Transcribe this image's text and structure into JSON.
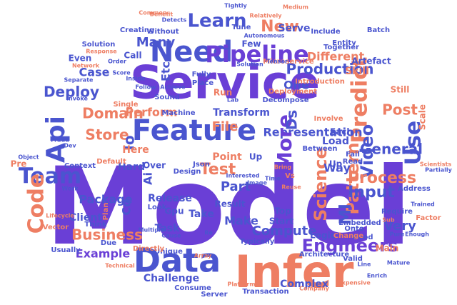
{
  "word_cloud": {
    "background": "#ffffff",
    "words": [
      {
        "text": "Model",
        "color": "#6a3fd6"
      },
      {
        "text": "Service",
        "color": "#6a3fd6"
      },
      {
        "text": "Infer",
        "color": "#ee7e63"
      },
      {
        "text": "Data",
        "color": "#4a55cf"
      },
      {
        "text": "Feature",
        "color": "#4a55cf"
      },
      {
        "text": "Need",
        "color": "#4a55cf"
      },
      {
        "text": "Pipeline",
        "color": "#6a3fd6"
      },
      {
        "text": "Predict",
        "color": "#ee7e63"
      },
      {
        "text": "Api",
        "color": "#4a55cf"
      },
      {
        "text": "Team",
        "color": "#4a55cf"
      },
      {
        "text": "Code",
        "color": "#ee7e63"
      },
      {
        "text": "Use",
        "color": "#4a55cf"
      },
      {
        "text": "Domain",
        "color": "#ee7e63"
      },
      {
        "text": "Business",
        "color": "#ee7e63"
      },
      {
        "text": "Pattern",
        "color": "#ee7e63"
      },
      {
        "text": "Engineers",
        "color": "#6a3fd6"
      },
      {
        "text": "Learn",
        "color": "#4a55cf"
      },
      {
        "text": "New",
        "color": "#ee7e63"
      },
      {
        "text": "Video",
        "color": "#4a55cf"
      },
      {
        "text": "Input",
        "color": "#4a55cf"
      },
      {
        "text": "Test",
        "color": "#ee7e63"
      },
      {
        "text": "Science",
        "color": "#ee7e63"
      },
      {
        "text": "Process",
        "color": "#ee7e63"
      },
      {
        "text": "General",
        "color": "#4a55cf"
      },
      {
        "text": "Store",
        "color": "#ee7e63"
      },
      {
        "text": "Deploy",
        "color": "#4a55cf"
      },
      {
        "text": "Production",
        "color": "#4a55cf"
      },
      {
        "text": "Representation",
        "color": "#4a55cf"
      },
      {
        "text": "Different",
        "color": "#ee7e63"
      },
      {
        "text": "Example",
        "color": "#6a3fd6"
      },
      {
        "text": "Many",
        "color": "#4a55cf"
      },
      {
        "text": "Package",
        "color": "#4a55cf"
      },
      {
        "text": "More",
        "color": "#6a3fd6"
      },
      {
        "text": "Make",
        "color": "#4a55cf"
      },
      {
        "text": "Compute",
        "color": "#4a55cf"
      },
      {
        "text": "File",
        "color": "#ee7e63"
      },
      {
        "text": "Part",
        "color": "#4a55cf"
      },
      {
        "text": "Very",
        "color": "#4a55cf"
      },
      {
        "text": "Post",
        "color": "#ee7e63"
      },
      {
        "text": "Ml",
        "color": "#4a55cf"
      },
      {
        "text": "Ds",
        "color": "#4a55cf"
      },
      {
        "text": "Io",
        "color": "#4a55cf"
      },
      {
        "text": "Cd",
        "color": "#4a55cf"
      },
      {
        "text": "Ai",
        "color": "#4a55cf"
      },
      {
        "text": "Case",
        "color": "#4a55cf"
      },
      {
        "text": "Etc",
        "color": "#4a55cf"
      },
      {
        "text": "One",
        "color": "#4a55cf"
      },
      {
        "text": "Serve",
        "color": "#4a55cf"
      },
      {
        "text": "Skill",
        "color": "#ee7e63"
      },
      {
        "text": "Scale",
        "color": "#ee7e63"
      },
      {
        "text": "Transform",
        "color": "#4a55cf"
      },
      {
        "text": "Perform",
        "color": "#ee7e63"
      },
      {
        "text": "Load",
        "color": "#4a55cf"
      },
      {
        "text": "Way",
        "color": "#4a55cf"
      },
      {
        "text": "Point",
        "color": "#ee7e63"
      },
      {
        "text": "Task",
        "color": "#4a55cf"
      },
      {
        "text": "Client",
        "color": "#4a55cf"
      },
      {
        "text": "Challenge",
        "color": "#4a55cf"
      },
      {
        "text": "Complex",
        "color": "#4a55cf"
      },
      {
        "text": "Here",
        "color": "#ee7e63"
      },
      {
        "text": "Hard",
        "color": "#4a55cf"
      },
      {
        "text": "Release",
        "color": "#4a55cf"
      },
      {
        "text": "Result",
        "color": "#4a55cf"
      },
      {
        "text": "Logic",
        "color": "#4a55cf"
      },
      {
        "text": "Each",
        "color": "#4a55cf"
      },
      {
        "text": "Call",
        "color": "#4a55cf"
      },
      {
        "text": "Even",
        "color": "#4a55cf"
      },
      {
        "text": "Few",
        "color": "#4a55cf"
      },
      {
        "text": "Run",
        "color": "#ee7e63"
      },
      {
        "text": "Gpu",
        "color": "#4a55cf"
      },
      {
        "text": "Json",
        "color": "#4a55cf"
      },
      {
        "text": "Design",
        "color": "#4a55cf"
      },
      {
        "text": "Machine",
        "color": "#4a55cf"
      },
      {
        "text": "Typically",
        "color": "#4a55cf"
      },
      {
        "text": "Plan",
        "color": "#ee7e63"
      },
      {
        "text": "Up",
        "color": "#4a55cf"
      },
      {
        "text": "Up",
        "color": "#4a55cf"
      },
      {
        "text": "Take",
        "color": "#4a55cf"
      },
      {
        "text": "Usually",
        "color": "#4a55cf"
      },
      {
        "text": "Unique",
        "color": "#4a55cf"
      },
      {
        "text": "Consume",
        "color": "#4a55cf"
      },
      {
        "text": "Server",
        "color": "#4a55cf"
      },
      {
        "text": "Transaction",
        "color": "#4a55cf"
      },
      {
        "text": "Platform",
        "color": "#ee7e63"
      },
      {
        "text": "Company",
        "color": "#ee7e63"
      },
      {
        "text": "Expensive",
        "color": "#ee7e63"
      },
      {
        "text": "Main",
        "color": "#ee7e63"
      },
      {
        "text": "Good",
        "color": "#4a55cf"
      },
      {
        "text": "Valid",
        "color": "#4a55cf"
      },
      {
        "text": "Architecture",
        "color": "#4a55cf"
      },
      {
        "text": "Embedded",
        "color": "#4a55cf"
      },
      {
        "text": "Require",
        "color": "#4a55cf"
      },
      {
        "text": "Factor",
        "color": "#ee7e63"
      },
      {
        "text": "Onto",
        "color": "#4a55cf"
      },
      {
        "text": "Change",
        "color": "#ee7e63"
      },
      {
        "text": "Address",
        "color": "#4a55cf"
      },
      {
        "text": "Fail",
        "color": "#4a55cf"
      },
      {
        "text": "Read",
        "color": "#4a55cf"
      },
      {
        "text": "Between",
        "color": "#4a55cf"
      },
      {
        "text": "Involve",
        "color": "#ee7e63"
      },
      {
        "text": "Decompose",
        "color": "#4a55cf"
      },
      {
        "text": "Deployment",
        "color": "#ee7e63"
      },
      {
        "text": "Microservice",
        "color": "#ee7e63"
      },
      {
        "text": "Introduction",
        "color": "#ee7e63"
      },
      {
        "text": "Artefact",
        "color": "#4a55cf"
      },
      {
        "text": "Still",
        "color": "#ee7e63"
      },
      {
        "text": "Together",
        "color": "#4a55cf"
      },
      {
        "text": "Entity",
        "color": "#4a55cf"
      },
      {
        "text": "Include",
        "color": "#4a55cf"
      },
      {
        "text": "Batch",
        "color": "#4a55cf"
      },
      {
        "text": "Detects",
        "color": "#4a55cf"
      },
      {
        "text": "Common",
        "color": "#ee7e63"
      },
      {
        "text": "Benefit",
        "color": "#ee7e63"
      },
      {
        "text": "Creating",
        "color": "#4a55cf"
      },
      {
        "text": "Without",
        "color": "#4a55cf"
      },
      {
        "text": "Tune",
        "color": "#4a55cf"
      },
      {
        "text": "Tensor",
        "color": "#4a55cf"
      },
      {
        "text": "Solution",
        "color": "#4a55cf"
      },
      {
        "text": "Lab",
        "color": "#4a55cf"
      },
      {
        "text": "Solution",
        "color": "#4a55cf"
      },
      {
        "text": "Response",
        "color": "#ee7e63"
      },
      {
        "text": "Order",
        "color": "#4a55cf"
      },
      {
        "text": "Network",
        "color": "#ee7e63"
      },
      {
        "text": "Separate",
        "color": "#4a55cf"
      },
      {
        "text": "Invoke",
        "color": "#4a55cf"
      },
      {
        "text": "Score",
        "color": "#4a55cf"
      },
      {
        "text": "Inside",
        "color": "#4a55cf"
      },
      {
        "text": "Single",
        "color": "#ee7e63"
      },
      {
        "text": "Sound",
        "color": "#4a55cf"
      },
      {
        "text": "Follow",
        "color": "#4a55cf"
      },
      {
        "text": "Achieve",
        "color": "#4a55cf"
      },
      {
        "text": "Place",
        "color": "#4a55cf"
      },
      {
        "text": "Fully",
        "color": "#4a55cf"
      },
      {
        "text": "Dev",
        "color": "#4a55cf"
      },
      {
        "text": "Context",
        "color": "#4a55cf"
      },
      {
        "text": "Fraud",
        "color": "#4a55cf"
      },
      {
        "text": "Object",
        "color": "#4a55cf"
      },
      {
        "text": "Vector",
        "color": "#ee7e63"
      },
      {
        "text": "Work",
        "color": "#4a55cf"
      },
      {
        "text": "Lifecycle",
        "color": "#ee7e63"
      },
      {
        "text": "Multiple",
        "color": "#4a55cf"
      },
      {
        "text": "Cause",
        "color": "#4a55cf"
      },
      {
        "text": "Array",
        "color": "#ee7e63"
      },
      {
        "text": "Image",
        "color": "#4a55cf"
      },
      {
        "text": "Interested",
        "color": "#4a55cf"
      },
      {
        "text": "Enrich",
        "color": "#4a55cf"
      },
      {
        "text": "Mature",
        "color": "#4a55cf"
      },
      {
        "text": "Pure",
        "color": "#4a55cf"
      },
      {
        "text": "Enough",
        "color": "#4a55cf"
      },
      {
        "text": "Trained",
        "color": "#4a55cf"
      },
      {
        "text": "Scientists",
        "color": "#ee7e63"
      },
      {
        "text": "Partially",
        "color": "#4a55cf"
      },
      {
        "text": "Line",
        "color": "#4a55cf"
      },
      {
        "text": "Tightly",
        "color": "#4a55cf"
      },
      {
        "text": "Medium",
        "color": "#ee7e63"
      },
      {
        "text": "Relatively",
        "color": "#ee7e63"
      },
      {
        "text": "Autonomous",
        "color": "#4a55cf"
      },
      {
        "text": "Directly",
        "color": "#ee7e63"
      },
      {
        "text": "Default",
        "color": "#ee7e63"
      },
      {
        "text": "Due",
        "color": "#4a55cf"
      },
      {
        "text": "Look",
        "color": "#4a55cf"
      },
      {
        "text": "Over",
        "color": "#4a55cf"
      },
      {
        "text": "Top",
        "color": "#4a55cf"
      },
      {
        "text": "Start",
        "color": "#4a55cf"
      },
      {
        "text": "Pre",
        "color": "#ee7e63"
      },
      {
        "text": "Vs",
        "color": "#ee7e63"
      },
      {
        "text": "Re",
        "color": "#4a55cf"
      },
      {
        "text": "Think",
        "color": "#4a55cf"
      },
      {
        "text": "Technical",
        "color": "#ee7e63"
      },
      {
        "text": "Time",
        "color": "#4a55cf"
      },
      {
        "text": "Bring",
        "color": "#ee7e63"
      },
      {
        "text": "Reuse",
        "color": "#ee7e63"
      },
      {
        "text": "Sub",
        "color": "#ee7e63"
      },
      {
        "text": "Pass",
        "color": "#ee7e63"
      },
      {
        "text": "Lock",
        "color": "#4a55cf"
      },
      {
        "text": "Category",
        "color": "#ee7e63"
      }
    ]
  }
}
